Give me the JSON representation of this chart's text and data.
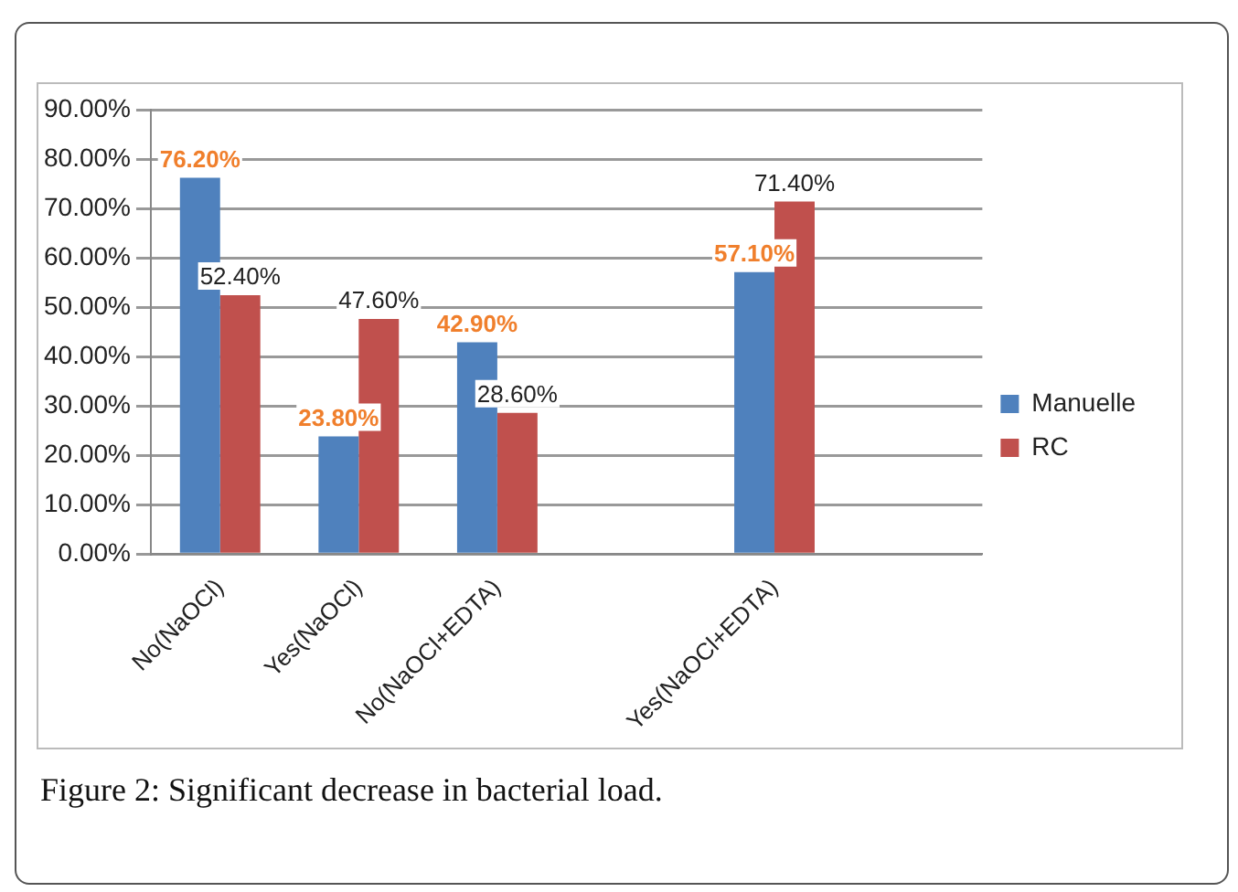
{
  "chart_data": {
    "type": "bar",
    "categories": [
      "No(NaOCl)",
      "Yes(NaOCl)",
      "No(NaOCl+EDTA)",
      null,
      "Yes(NaOCl+EDTA)",
      null
    ],
    "series": [
      {
        "name": "Manuelle",
        "color": "#4f81bd",
        "values": [
          76.2,
          23.8,
          42.9,
          null,
          57.1,
          null
        ],
        "value_labels": [
          "76.20%",
          "23.80%",
          "42.90%",
          null,
          "57.10%",
          null
        ]
      },
      {
        "name": "RC",
        "color": "#c0504d",
        "values": [
          52.4,
          47.6,
          28.6,
          null,
          71.4,
          null
        ],
        "value_labels": [
          "52.40%",
          "47.60%",
          "28.60%",
          null,
          "71.40%",
          null
        ]
      }
    ],
    "ylim": [
      0,
      90
    ],
    "yticks": [
      {
        "value": 0,
        "label": "0.00%"
      },
      {
        "value": 10,
        "label": "10.00%"
      },
      {
        "value": 20,
        "label": "20.00%"
      },
      {
        "value": 30,
        "label": "30.00%"
      },
      {
        "value": 40,
        "label": "40.00%"
      },
      {
        "value": 50,
        "label": "50.00%"
      },
      {
        "value": 60,
        "label": "60.00%"
      },
      {
        "value": 70,
        "label": "70.00%"
      },
      {
        "value": 80,
        "label": "80.00%"
      },
      {
        "value": 90,
        "label": "90.00%"
      }
    ],
    "grid": "y",
    "legend": "right",
    "annotations": [
      "Figure 2: Significant decrease in bacterial load."
    ]
  }
}
